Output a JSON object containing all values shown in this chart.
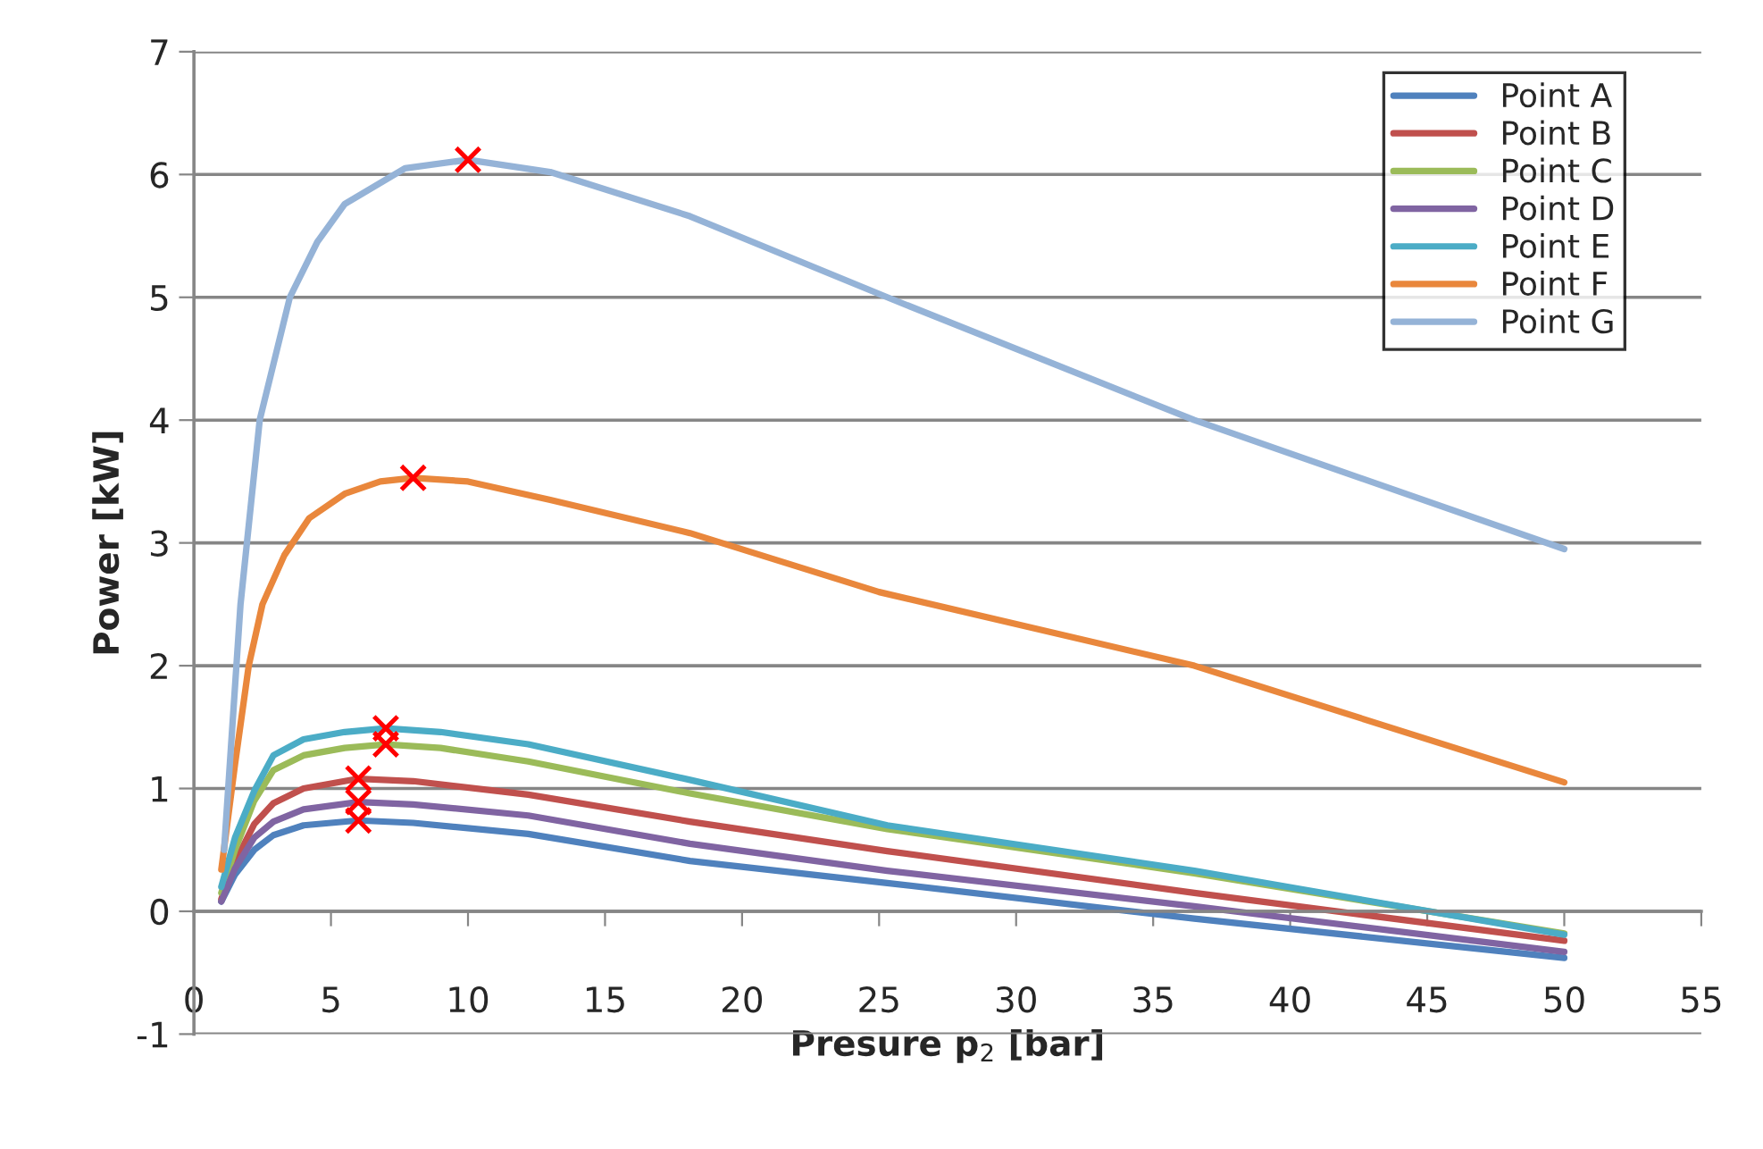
{
  "chart_data": {
    "type": "line",
    "xlabel": "Presure p$_{2}$ [bar]",
    "ylabel": "Power [kW]",
    "xlim": [
      0,
      55
    ],
    "xticks": [
      0,
      5,
      10,
      15,
      20,
      25,
      30,
      35,
      40,
      45,
      50,
      55
    ],
    "ylim": [
      -1,
      7
    ],
    "yticks": [
      -1,
      0,
      1,
      2,
      3,
      4,
      5,
      6,
      7
    ],
    "grid": "y",
    "legend": "top right",
    "marker": "none",
    "line_style": "solid",
    "series": [
      {
        "name": "Point A",
        "color": "#4f81bd",
        "x": [
          1,
          1.5,
          2.2,
          2.9,
          4,
          6,
          8,
          12.2,
          18.1,
          25.3,
          36.5,
          50
        ],
        "values": [
          0.08,
          0.3,
          0.5,
          0.62,
          0.7,
          0.74,
          0.72,
          0.63,
          0.41,
          0.23,
          -0.06,
          -0.38
        ]
      },
      {
        "name": "Point B",
        "color": "#c0504d",
        "x": [
          1,
          1.5,
          2.2,
          2.9,
          4,
          6,
          8,
          12.2,
          18.1,
          25.3,
          36.5,
          50
        ],
        "values": [
          0.1,
          0.4,
          0.71,
          0.88,
          1.0,
          1.08,
          1.06,
          0.95,
          0.73,
          0.49,
          0.15,
          -0.24
        ]
      },
      {
        "name": "Point C",
        "color": "#9bbb59",
        "x": [
          1,
          1.5,
          2.2,
          2.9,
          4,
          5.5,
          7,
          9,
          12.2,
          18.1,
          25.3,
          36.5,
          50
        ],
        "values": [
          0.15,
          0.5,
          0.9,
          1.15,
          1.27,
          1.33,
          1.36,
          1.33,
          1.22,
          0.96,
          0.67,
          0.31,
          -0.18
        ]
      },
      {
        "name": "Point D",
        "color": "#8064a2",
        "x": [
          1,
          1.5,
          2.2,
          2.9,
          4,
          6,
          8,
          12.2,
          18.1,
          25.3,
          36.5,
          50
        ],
        "values": [
          0.08,
          0.35,
          0.6,
          0.73,
          0.83,
          0.89,
          0.87,
          0.78,
          0.55,
          0.33,
          0.04,
          -0.33
        ]
      },
      {
        "name": "Point E",
        "color": "#4bacc6",
        "x": [
          1,
          1.5,
          2.2,
          2.9,
          4,
          5.5,
          7,
          9,
          12.2,
          18.1,
          25.3,
          36.5,
          50
        ],
        "values": [
          0.2,
          0.6,
          0.98,
          1.27,
          1.4,
          1.46,
          1.49,
          1.46,
          1.36,
          1.07,
          0.7,
          0.33,
          -0.19
        ]
      },
      {
        "name": "Point F",
        "color": "#e9873c",
        "x": [
          1,
          1.5,
          2,
          2.5,
          3.3,
          4.2,
          5.5,
          6.8,
          8,
          10,
          13,
          18.1,
          25,
          36.5,
          50
        ],
        "values": [
          0.34,
          1.2,
          2.0,
          2.5,
          2.9,
          3.2,
          3.4,
          3.5,
          3.53,
          3.5,
          3.35,
          3.08,
          2.6,
          2.0,
          1.05
        ]
      },
      {
        "name": "Point G",
        "color": "#95b3d7",
        "x": [
          1.1,
          1.4,
          1.7,
          2.4,
          3.5,
          4.5,
          5.5,
          7.7,
          10,
          13,
          18.1,
          25.3,
          36.5,
          50
        ],
        "values": [
          0.5,
          1.5,
          2.5,
          4.0,
          5.0,
          5.45,
          5.76,
          6.05,
          6.12,
          6.02,
          5.66,
          5.0,
          4.0,
          2.95
        ]
      },
      {
        "type": "scatter",
        "color": "#ff0000",
        "marker": "cross",
        "x": [
          6,
          6,
          6,
          7,
          7,
          8,
          10
        ],
        "values": [
          0.74,
          0.89,
          1.08,
          1.36,
          1.49,
          3.53,
          6.12
        ]
      }
    ]
  }
}
